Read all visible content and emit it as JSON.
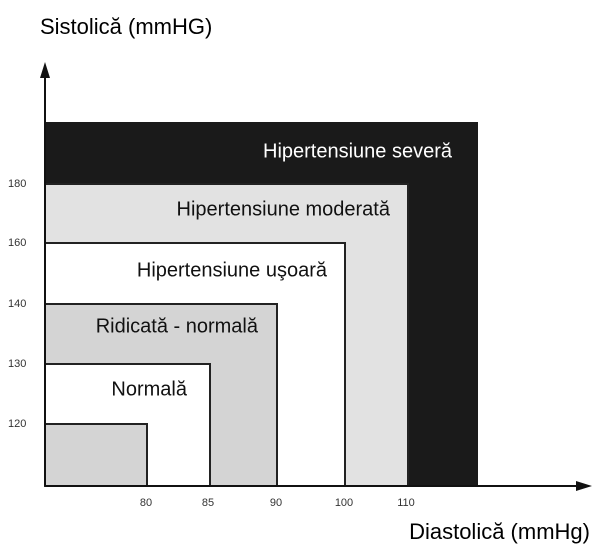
{
  "y_axis_label": "Sistolică (mmHG)",
  "x_axis_label": "Diastolică (mmHg)",
  "y_ticks": [
    "180",
    "160",
    "140",
    "130",
    "120"
  ],
  "x_ticks": [
    "80",
    "85",
    "90",
    "100",
    "110"
  ],
  "regions": [
    {
      "label": "Hipertensiune severă"
    },
    {
      "label": "Hipertensiune moderată"
    },
    {
      "label": "Hipertensiune uşoară"
    },
    {
      "label": "Ridicată - normală"
    },
    {
      "label": "Normală"
    }
  ]
}
